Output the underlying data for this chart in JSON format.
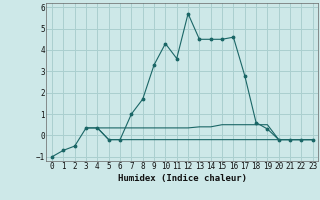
{
  "xlabel": "Humidex (Indice chaleur)",
  "ylabel": "",
  "background_color": "#cde8e8",
  "grid_color": "#aacfcf",
  "line_color": "#1a6666",
  "xlim": [
    -0.5,
    23.5
  ],
  "ylim": [
    -1.2,
    6.2
  ],
  "xticks": [
    0,
    1,
    2,
    3,
    4,
    5,
    6,
    7,
    8,
    9,
    10,
    11,
    12,
    13,
    14,
    15,
    16,
    17,
    18,
    19,
    20,
    21,
    22,
    23
  ],
  "yticks": [
    -1,
    0,
    1,
    2,
    3,
    4,
    5,
    6
  ],
  "series": [
    [
      0,
      -1.0
    ],
    [
      1,
      -0.7
    ],
    [
      2,
      -0.5
    ],
    [
      3,
      0.35
    ],
    [
      4,
      0.35
    ],
    [
      5,
      -0.2
    ],
    [
      6,
      -0.2
    ],
    [
      7,
      1.0
    ],
    [
      8,
      1.7
    ],
    [
      9,
      3.3
    ],
    [
      10,
      4.3
    ],
    [
      11,
      3.6
    ],
    [
      12,
      5.7
    ],
    [
      13,
      4.5
    ],
    [
      14,
      4.5
    ],
    [
      15,
      4.5
    ],
    [
      16,
      4.6
    ],
    [
      17,
      2.8
    ],
    [
      18,
      0.6
    ],
    [
      19,
      0.3
    ],
    [
      20,
      -0.2
    ],
    [
      21,
      -0.2
    ],
    [
      22,
      -0.2
    ],
    [
      23,
      -0.2
    ]
  ],
  "flat_series": [
    [
      3,
      0.35
    ],
    [
      4,
      0.35
    ],
    [
      5,
      0.35
    ],
    [
      6,
      0.35
    ],
    [
      7,
      0.35
    ],
    [
      8,
      0.35
    ],
    [
      9,
      0.35
    ],
    [
      10,
      0.35
    ],
    [
      11,
      0.35
    ],
    [
      12,
      0.35
    ],
    [
      13,
      0.4
    ],
    [
      14,
      0.4
    ],
    [
      15,
      0.5
    ],
    [
      16,
      0.5
    ],
    [
      17,
      0.5
    ],
    [
      18,
      0.5
    ],
    [
      19,
      0.5
    ],
    [
      20,
      -0.2
    ],
    [
      21,
      -0.2
    ],
    [
      22,
      -0.2
    ],
    [
      23,
      -0.2
    ]
  ],
  "flat_series2": [
    [
      4,
      0.35
    ],
    [
      5,
      -0.2
    ],
    [
      6,
      -0.2
    ],
    [
      7,
      -0.2
    ],
    [
      8,
      -0.2
    ],
    [
      9,
      -0.2
    ],
    [
      10,
      -0.2
    ],
    [
      11,
      -0.2
    ],
    [
      12,
      -0.2
    ],
    [
      13,
      -0.2
    ],
    [
      14,
      -0.2
    ],
    [
      15,
      -0.2
    ],
    [
      16,
      -0.2
    ],
    [
      17,
      -0.2
    ],
    [
      18,
      -0.2
    ],
    [
      19,
      -0.2
    ],
    [
      20,
      -0.2
    ],
    [
      21,
      -0.2
    ],
    [
      22,
      -0.2
    ],
    [
      23,
      -0.2
    ]
  ]
}
